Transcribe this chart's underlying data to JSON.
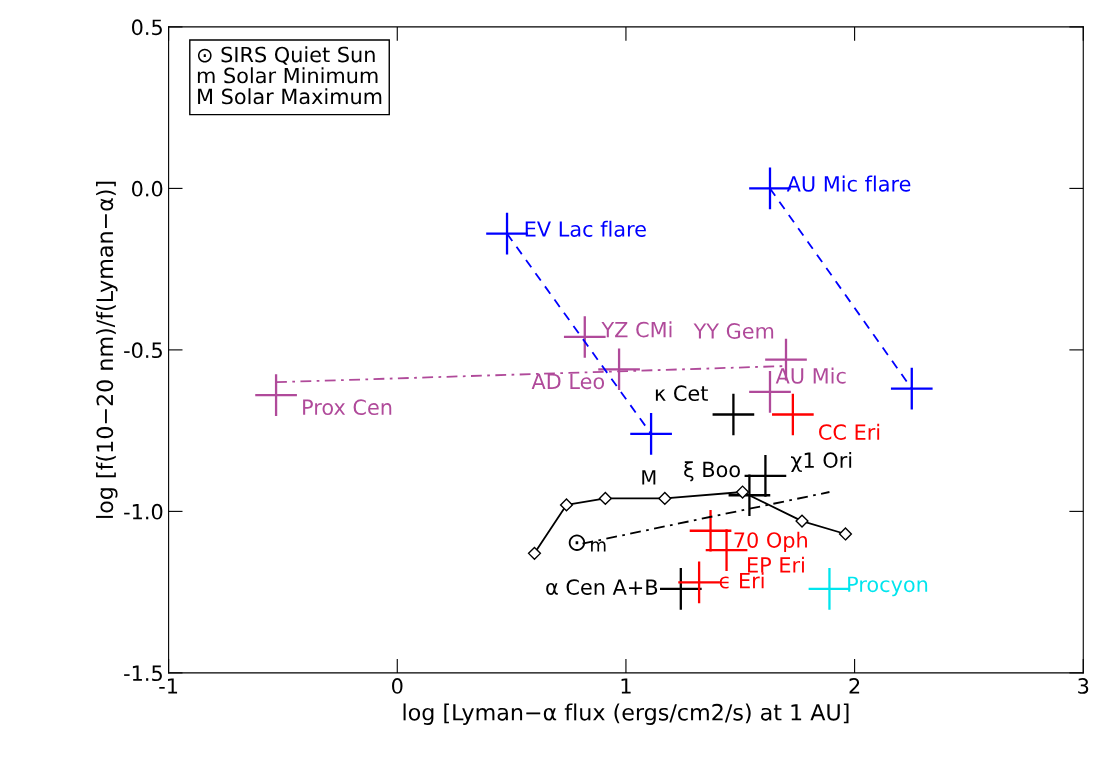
{
  "chart_data": {
    "type": "scatter",
    "xlabel": "log [Lyman−α flux (ergs/cm2/s) at 1 AU]",
    "ylabel": "log [f(10−20 nm)/f(Lyman−α)]",
    "xlim": [
      -1,
      3
    ],
    "xticks": [
      -1,
      0,
      1,
      2,
      3
    ],
    "ylim": [
      -1.5,
      0.5
    ],
    "yticks": [
      {
        "value": 0.5,
        "label": "0.5"
      },
      {
        "value": 0,
        "label": "0.0"
      },
      {
        "value": -0.5,
        "label": "-0.5"
      },
      {
        "value": -1,
        "label": "-1.0"
      },
      {
        "value": -1.5,
        "label": "-1.5"
      }
    ],
    "grid": false,
    "legend": false,
    "marker": "cross",
    "series": [
      {
        "type": "line",
        "color": "#000000",
        "marker": "diamond",
        "line_style": "solid",
        "x": [
          0.6,
          0.74,
          0.91,
          1.17,
          1.51,
          1.77,
          1.96
        ],
        "values": [
          -1.13,
          -0.98,
          -0.96,
          -0.96,
          -0.94,
          -1.03,
          -1.07
        ]
      },
      {
        "type": "line",
        "color": "#000000",
        "marker": "none",
        "line_style": "dashdot",
        "x": [
          0.81,
          1.89
        ],
        "values": [
          -1.1,
          -0.94
        ]
      },
      {
        "type": "line",
        "color": "#b04a9a",
        "marker": "none",
        "line_style": "dashdot",
        "x": [
          -0.53,
          1.7
        ],
        "values": [
          -0.6,
          -0.55
        ]
      },
      {
        "type": "line",
        "color": "#0000ff",
        "marker": "none",
        "line_style": "dashed",
        "x": [
          0.48,
          1.11
        ],
        "values": [
          -0.14,
          -0.76
        ]
      },
      {
        "type": "line",
        "color": "#0000ff",
        "marker": "none",
        "line_style": "dashed",
        "x": [
          1.63,
          2.25
        ],
        "values": [
          0.0,
          -0.62
        ]
      },
      {
        "name": "EV Lac flare",
        "color": "#0000ff",
        "x": [
          0.48
        ],
        "values": [
          -0.14
        ]
      },
      {
        "color": "#0000ff",
        "x": [
          1.11
        ],
        "values": [
          -0.76
        ]
      },
      {
        "name": "AU Mic flare",
        "color": "#0000ff",
        "x": [
          1.63
        ],
        "values": [
          0.0
        ]
      },
      {
        "color": "#0000ff",
        "x": [
          2.25
        ],
        "values": [
          -0.62
        ]
      },
      {
        "name": "YZ CMi",
        "color": "#b04a9a",
        "x": [
          0.82
        ],
        "values": [
          -0.46
        ]
      },
      {
        "name": "YY Gem",
        "color": "#b04a9a",
        "x": [
          1.7
        ],
        "values": [
          -0.53
        ]
      },
      {
        "name": "AD Leo",
        "color": "#b04a9a",
        "x": [
          0.97
        ],
        "values": [
          -0.56
        ]
      },
      {
        "name": "Prox Cen",
        "color": "#b04a9a",
        "x": [
          -0.53
        ],
        "values": [
          -0.64
        ]
      },
      {
        "name": "AU Mic",
        "color": "#b04a9a",
        "x": [
          1.63
        ],
        "values": [
          -0.63
        ]
      },
      {
        "name": "κ Cet",
        "color": "#000000",
        "x": [
          1.47
        ],
        "values": [
          -0.7
        ]
      },
      {
        "name": "χ1 Ori",
        "color": "#000000",
        "x": [
          1.61
        ],
        "values": [
          -0.89
        ]
      },
      {
        "name": "ξ Boo",
        "color": "#000000",
        "x": [
          1.54
        ],
        "values": [
          -0.95
        ]
      },
      {
        "name": "α Cen A+B",
        "color": "#000000",
        "x": [
          1.24
        ],
        "values": [
          -1.24
        ]
      },
      {
        "name": "CC Eri",
        "color": "#ff0000",
        "x": [
          1.73
        ],
        "values": [
          -0.7
        ]
      },
      {
        "name": "70 Oph",
        "color": "#ff0000",
        "x": [
          1.37
        ],
        "values": [
          -1.06
        ]
      },
      {
        "name": "EP Eri",
        "color": "#ff0000",
        "x": [
          1.44
        ],
        "values": [
          -1.12
        ]
      },
      {
        "name": "ϵ Eri",
        "color": "#ff0000",
        "x": [
          1.32
        ],
        "values": [
          -1.22
        ]
      },
      {
        "name": "Procyon",
        "color": "#00e5ee",
        "x": [
          1.89
        ],
        "values": [
          -1.24
        ]
      }
    ],
    "annotations": [
      "⊙ SIRS Quiet Sun\nm Solar Minimum\nM Solar Maximum",
      {
        "text": "⊙",
        "x": 0.81,
        "y": -1.1
      },
      "m",
      "M"
    ]
  }
}
